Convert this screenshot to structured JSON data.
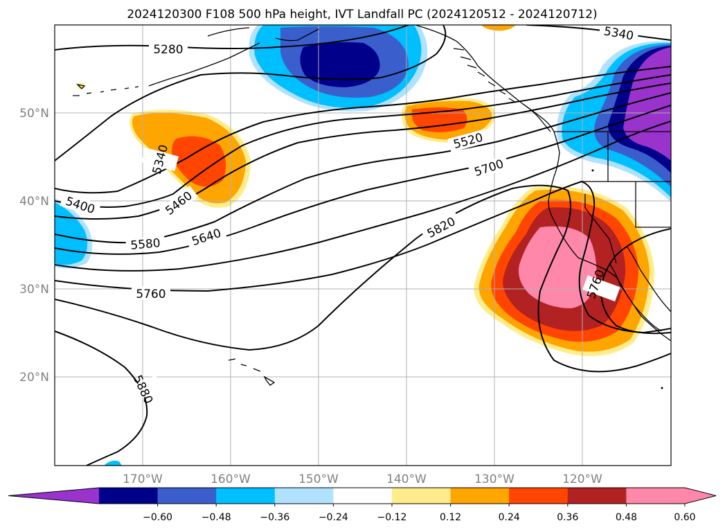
{
  "title": "2024120300 F108 500 hPa height, IVT Landfall PC (2024120512 - 2024120712)",
  "lon_ticks": [
    {
      "label": "170°W",
      "lon": -170
    },
    {
      "label": "160°W",
      "lon": -160
    },
    {
      "label": "150°W",
      "lon": -150
    },
    {
      "label": "140°W",
      "lon": -140
    },
    {
      "label": "130°W",
      "lon": -130
    },
    {
      "label": "120°W",
      "lon": -120
    }
  ],
  "lat_ticks": [
    {
      "label": "50°N",
      "lat": 50
    },
    {
      "label": "40°N",
      "lat": 40
    },
    {
      "label": "30°N",
      "lat": 30
    },
    {
      "label": "20°N",
      "lat": 20
    }
  ],
  "contour_labels": [
    "5280",
    "5340",
    "5340",
    "5400",
    "5460",
    "5520",
    "5580",
    "5640",
    "5700",
    "5760",
    "5760",
    "5820",
    "5880"
  ],
  "colorbar": {
    "ticks": [
      "−0.60",
      "−0.48",
      "−0.36",
      "−0.24",
      "−0.12",
      "0.12",
      "0.24",
      "0.36",
      "0.48",
      "0.60"
    ],
    "colors": [
      "#9933cc",
      "#00008b",
      "#3a5fcd",
      "#00bfff",
      "#b0e2ff",
      "#ffffff",
      "#ffec8b",
      "#ffa500",
      "#ff4500",
      "#b22222",
      "#ff88aa",
      "#ff88aa"
    ]
  }
}
